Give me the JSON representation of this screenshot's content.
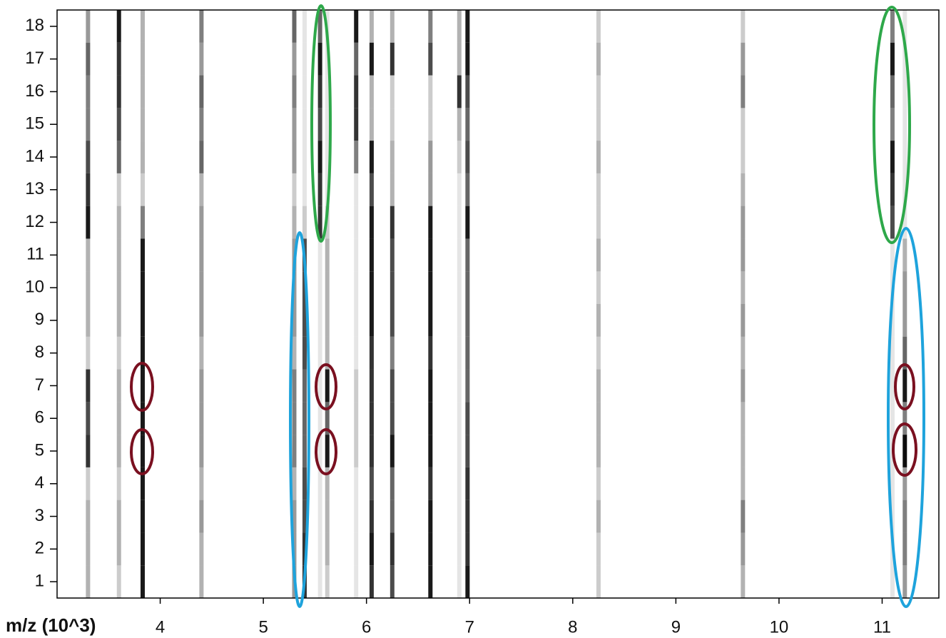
{
  "chart_data": {
    "type": "gel",
    "x_label": "m/z (10^3)",
    "xlim": [
      3.0,
      11.55
    ],
    "xticks": [
      4,
      5,
      6,
      7,
      8,
      9,
      10,
      11
    ],
    "ylim": [
      0.5,
      18.5
    ],
    "yticks": [
      1,
      2,
      3,
      4,
      5,
      6,
      7,
      8,
      9,
      10,
      11,
      12,
      13,
      14,
      15,
      16,
      17,
      18
    ],
    "color": "#000000",
    "peaks": [
      {
        "mz": 3.3,
        "values": [
          0.3,
          0.3,
          0.3,
          0.2,
          0.8,
          0.7,
          0.8,
          0.2,
          0.3,
          0.3,
          0.3,
          0.9,
          0.8,
          0.7,
          0.5,
          0.5,
          0.6,
          0.4
        ]
      },
      {
        "mz": 3.6,
        "values": [
          0.2,
          0.3,
          0.3,
          0.2,
          0.3,
          0.3,
          0.3,
          0.2,
          0.3,
          0.3,
          0.3,
          0.3,
          0.2,
          0.6,
          0.7,
          0.8,
          0.8,
          0.9
        ]
      },
      {
        "mz": 3.83,
        "values": [
          0.9,
          0.9,
          0.9,
          0.9,
          0.9,
          0.9,
          0.9,
          0.9,
          0.9,
          0.9,
          0.9,
          0.5,
          0.2,
          0.3,
          0.3,
          0.3,
          0.3,
          0.3
        ]
      },
      {
        "mz": 4.4,
        "values": [
          0.3,
          0.3,
          0.4,
          0.3,
          0.4,
          0.4,
          0.4,
          0.3,
          0.4,
          0.4,
          0.4,
          0.4,
          0.3,
          0.6,
          0.5,
          0.6,
          0.4,
          0.5
        ]
      },
      {
        "mz": 5.3,
        "values": [
          0.4,
          0.4,
          0.4,
          0.3,
          0.5,
          0.5,
          0.5,
          0.3,
          0.4,
          0.4,
          0.4,
          0.3,
          0.2,
          0.4,
          0.4,
          0.5,
          0.4,
          0.6
        ]
      },
      {
        "mz": 5.4,
        "values": [
          0.8,
          0.8,
          0.7,
          0.7,
          0.6,
          0.6,
          0.6,
          0.7,
          0.7,
          0.7,
          0.7,
          0.2,
          0.1,
          0.1,
          0.1,
          0.1,
          0.1,
          0.1
        ]
      },
      {
        "mz": 5.55,
        "values": [
          0.1,
          0.1,
          0.1,
          0.1,
          0.1,
          0.1,
          0.1,
          0.1,
          0.1,
          0.1,
          0.1,
          0.8,
          0.8,
          0.9,
          0.7,
          0.8,
          0.9,
          0.6
        ]
      },
      {
        "mz": 5.62,
        "values": [
          0.2,
          0.3,
          0.3,
          0.3,
          0.9,
          0.6,
          0.9,
          0.3,
          0.3,
          0.3,
          0.3,
          0.2,
          0.1,
          0.1,
          0.1,
          0.1,
          0.1,
          0.1
        ]
      },
      {
        "mz": 5.9,
        "values": [
          0.1,
          0.1,
          0.1,
          0.1,
          0.2,
          0.2,
          0.2,
          0.1,
          0.1,
          0.1,
          0.1,
          0.1,
          0.1,
          0.5,
          0.8,
          0.8,
          0.6,
          0.9
        ]
      },
      {
        "mz": 6.05,
        "values": [
          0.8,
          0.9,
          0.8,
          0.7,
          0.8,
          0.8,
          0.8,
          0.8,
          0.9,
          0.9,
          0.9,
          0.9,
          0.7,
          0.9,
          0.3,
          0.3,
          0.9,
          0.3
        ]
      },
      {
        "mz": 6.25,
        "values": [
          0.7,
          0.8,
          0.6,
          0.6,
          0.9,
          0.7,
          0.7,
          0.5,
          0.7,
          0.7,
          0.7,
          0.8,
          0.3,
          0.3,
          0.2,
          0.2,
          0.8,
          0.3
        ]
      },
      {
        "mz": 6.62,
        "values": [
          0.9,
          0.9,
          0.9,
          0.8,
          0.9,
          0.9,
          0.9,
          0.8,
          0.9,
          0.9,
          0.9,
          0.9,
          0.4,
          0.4,
          0.2,
          0.2,
          0.7,
          0.5
        ]
      },
      {
        "mz": 6.9,
        "values": [
          0.1,
          0.1,
          0.1,
          0.1,
          0.1,
          0.1,
          0.1,
          0.1,
          0.1,
          0.1,
          0.1,
          0.1,
          0.1,
          0.2,
          0.3,
          0.8,
          0.3,
          0.3
        ]
      },
      {
        "mz": 6.98,
        "values": [
          0.9,
          0.8,
          0.8,
          0.8,
          0.7,
          0.7,
          0.6,
          0.6,
          0.6,
          0.6,
          0.6,
          0.9,
          0.6,
          0.7,
          0.6,
          0.7,
          0.9,
          0.9
        ]
      },
      {
        "mz": 8.25,
        "values": [
          0.2,
          0.2,
          0.3,
          0.2,
          0.3,
          0.3,
          0.3,
          0.2,
          0.3,
          0.2,
          0.3,
          0.2,
          0.2,
          0.3,
          0.2,
          0.2,
          0.3,
          0.2
        ]
      },
      {
        "mz": 9.65,
        "values": [
          0.3,
          0.4,
          0.5,
          0.3,
          0.3,
          0.3,
          0.4,
          0.3,
          0.4,
          0.3,
          0.4,
          0.4,
          0.3,
          0.2,
          0.2,
          0.5,
          0.4,
          0.2
        ]
      },
      {
        "mz": 11.1,
        "values": [
          0.1,
          0.1,
          0.1,
          0.1,
          0.1,
          0.1,
          0.1,
          0.1,
          0.1,
          0.1,
          0.1,
          0.7,
          0.8,
          0.9,
          0.5,
          0.6,
          0.9,
          0.5
        ]
      },
      {
        "mz": 11.22,
        "values": [
          0.4,
          0.5,
          0.5,
          0.4,
          0.95,
          0.5,
          0.9,
          0.6,
          0.4,
          0.4,
          0.3,
          0.1,
          0.1,
          0.1,
          0.1,
          0.1,
          0.1,
          0.1
        ]
      }
    ]
  }
}
